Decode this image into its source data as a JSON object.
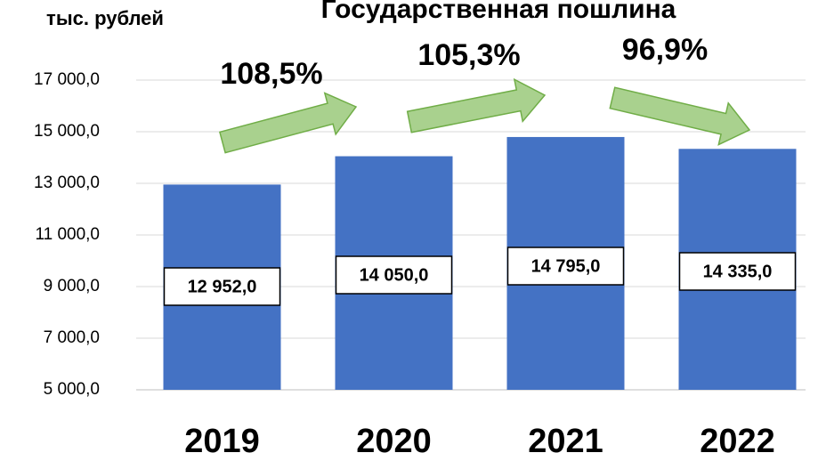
{
  "chart_data": {
    "type": "bar",
    "title": "Государственная пошлина",
    "y_axis_label": "тыс. рублей",
    "categories": [
      "2019",
      "2020",
      "2021",
      "2022"
    ],
    "values": [
      12952,
      14050,
      14795,
      14335
    ],
    "value_labels": [
      "12 952,0",
      "14 050,0",
      "14 795,0",
      "14 335,0"
    ],
    "color": "#4472c4",
    "ylim": [
      5000,
      17000
    ],
    "yticks": [
      {
        "value": 5000,
        "label": "5 000,0"
      },
      {
        "value": 7000,
        "label": "7 000,0"
      },
      {
        "value": 9000,
        "label": "9 000,0"
      },
      {
        "value": 11000,
        "label": "11 000,0"
      },
      {
        "value": 13000,
        "label": "13 000,0"
      },
      {
        "value": 15000,
        "label": "15 000,0"
      },
      {
        "value": 17000,
        "label": "17 000,0"
      }
    ],
    "grid": true,
    "annotations": [
      "108,5%",
      "105,3%",
      "96,9%"
    ]
  }
}
